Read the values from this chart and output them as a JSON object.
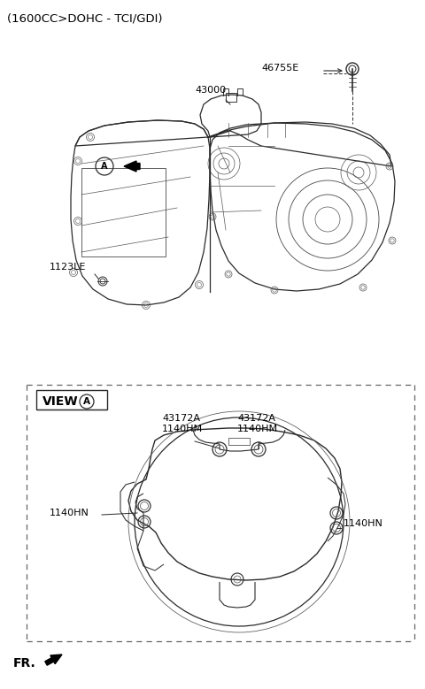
{
  "title_text": "(1600CC>DOHC - TCI/GDI)",
  "bg_color": "#ffffff",
  "text_color": "#000000",
  "label_46755E": "46755E",
  "label_43000": "43000",
  "label_1123LE": "1123LE",
  "label_43172A_1": "43172A\n1140HM",
  "label_43172A_2": "43172A\n1140HM",
  "label_1140HN_left": "1140HN",
  "label_1140HN_right": "1140HN",
  "label_FR": "FR.",
  "font_size_title": 9.5,
  "font_size_label": 8,
  "font_size_view": 10,
  "line_color": "#2a2a2a",
  "light_line_color": "#555555"
}
